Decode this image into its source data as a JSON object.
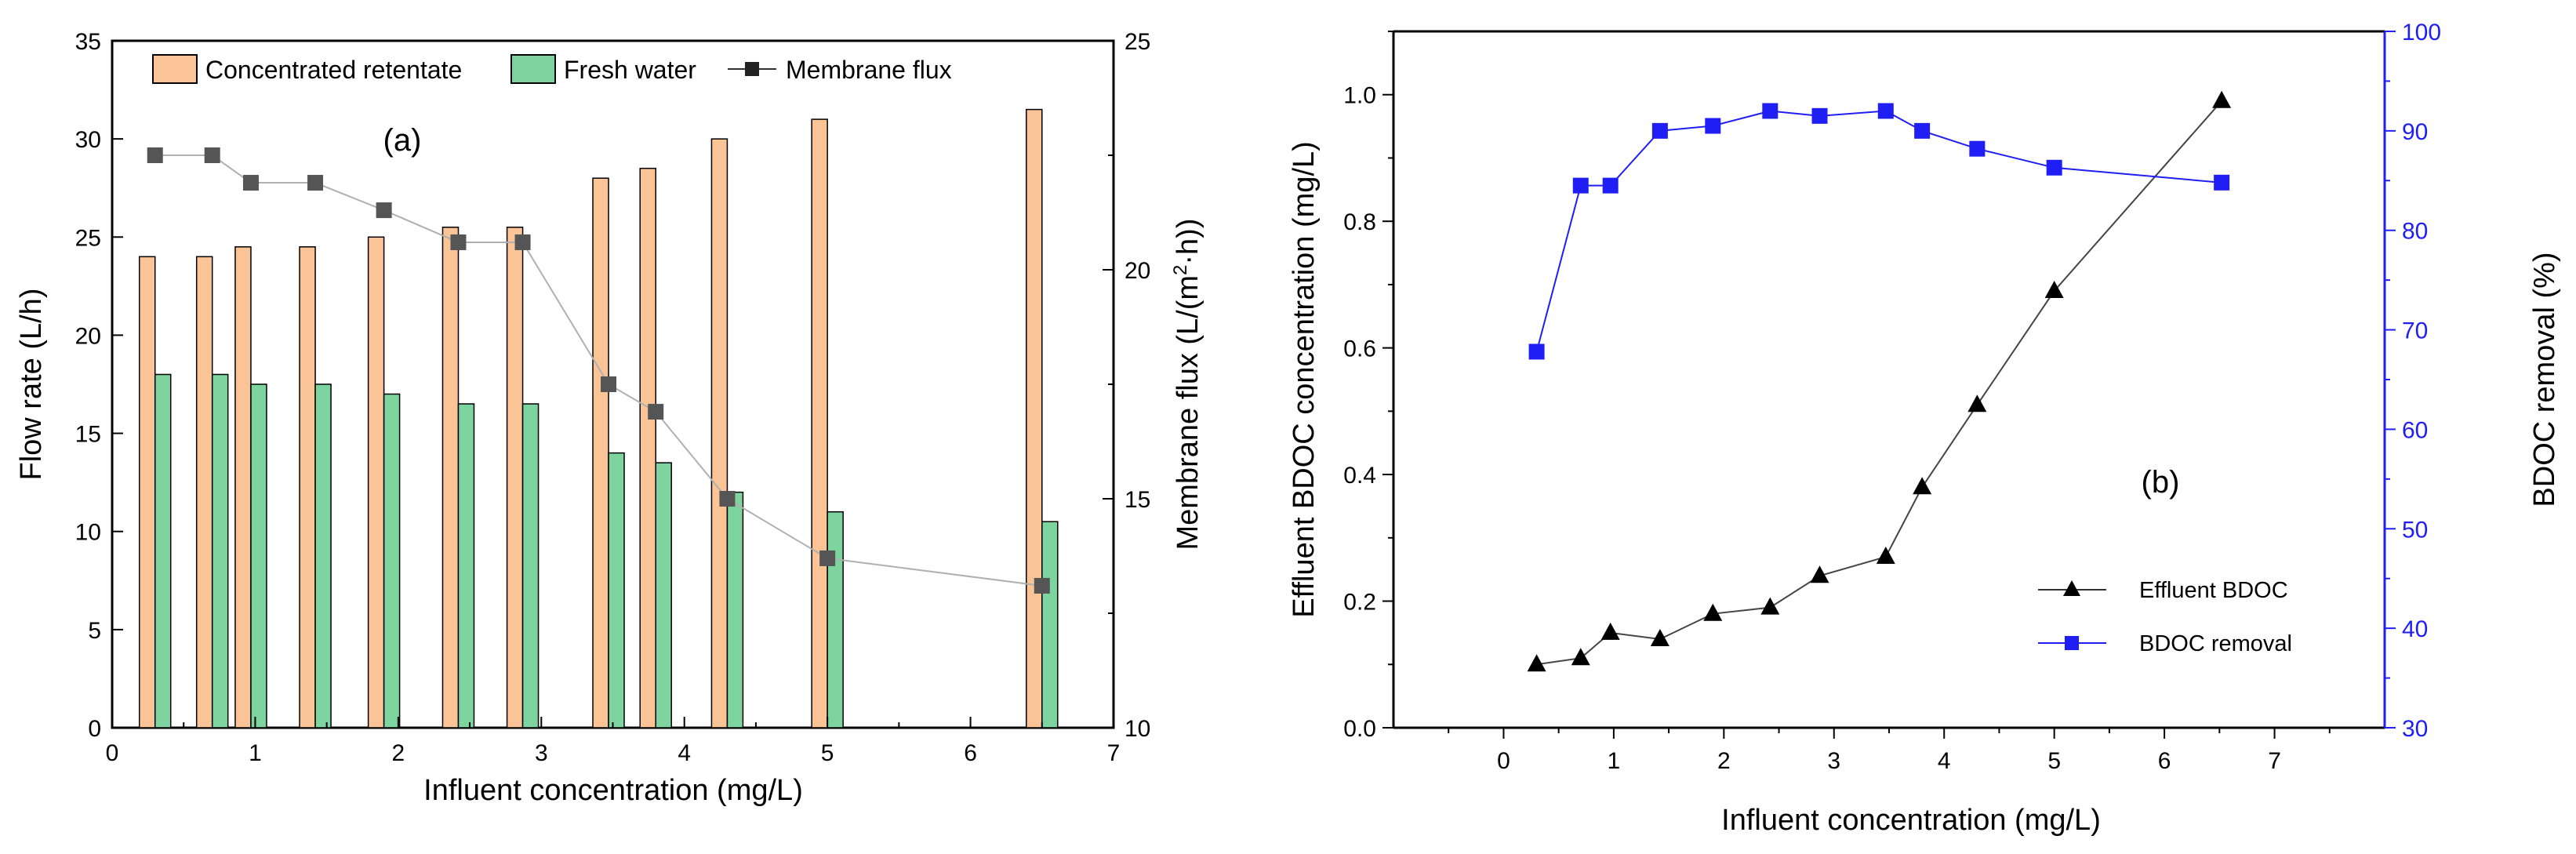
{
  "chart_data": [
    {
      "type": "bar",
      "panel_label": "(a)",
      "xlabel": "Influent concentration (mg/L)",
      "ylabel": "Flow rate (L/h)",
      "y2label_main": "Membrane flux (L/(m",
      "y2label_sup": "2",
      "y2label_tail": "·h))",
      "xlim": [
        0,
        7
      ],
      "ylim": [
        0,
        35
      ],
      "y2lim": [
        10,
        25
      ],
      "xticks": [
        "0",
        "1",
        "2",
        "3",
        "4",
        "5",
        "6",
        "7"
      ],
      "yticks": [
        "0",
        "5",
        "10",
        "15",
        "20",
        "25",
        "30",
        "35"
      ],
      "y2ticks": [
        "10",
        "15",
        "20",
        "25"
      ],
      "x": [
        0.3,
        0.7,
        0.97,
        1.42,
        1.9,
        2.42,
        2.87,
        3.47,
        3.8,
        4.3,
        5.0,
        6.5
      ],
      "series": [
        {
          "name": "Concentrated retentate",
          "values": [
            24.0,
            24.0,
            24.5,
            24.5,
            25.0,
            25.5,
            25.5,
            28.0,
            28.5,
            30.0,
            31.0,
            31.5
          ],
          "color": "#fbc497"
        },
        {
          "name": "Fresh water",
          "values": [
            18.0,
            18.0,
            17.5,
            17.5,
            17.0,
            16.5,
            16.5,
            14.0,
            13.5,
            12.0,
            11.0,
            10.5
          ],
          "color": "#7dd49e"
        },
        {
          "name": "Membrane flux",
          "values": [
            22.5,
            22.5,
            21.9,
            21.9,
            21.3,
            20.6,
            20.6,
            17.5,
            16.9,
            15.0,
            13.7,
            13.1
          ],
          "color": "#555555",
          "axis": "right"
        }
      ]
    },
    {
      "type": "line",
      "panel_label": "(b)",
      "xlabel": "Influent concentration (mg/L)",
      "ylabel": "Effluent BDOC concentration (mg/L)",
      "y2label": "BDOC removal (%)",
      "xlim": [
        -1,
        8
      ],
      "ylim": [
        0,
        1.1
      ],
      "y2lim": [
        30,
        100
      ],
      "xticks": [
        "0",
        "1",
        "2",
        "3",
        "4",
        "5",
        "6",
        "7"
      ],
      "yticks": [
        "0.0",
        "0.2",
        "0.4",
        "0.6",
        "0.8",
        "1.0"
      ],
      "y2ticks": [
        "30",
        "40",
        "50",
        "60",
        "70",
        "80",
        "90",
        "100"
      ],
      "series": [
        {
          "name": "Effluent BDOC",
          "x": [
            0.3,
            0.7,
            0.97,
            1.42,
            1.9,
            2.42,
            2.87,
            3.47,
            3.8,
            4.3,
            5.0,
            6.52
          ],
          "values": [
            0.1,
            0.11,
            0.15,
            0.14,
            0.18,
            0.19,
            0.24,
            0.27,
            0.38,
            0.51,
            0.69,
            0.99
          ],
          "color": "#000000",
          "axis": "left"
        },
        {
          "name": "BDOC removal",
          "x": [
            0.3,
            0.7,
            0.97,
            1.42,
            1.9,
            2.42,
            2.87,
            3.47,
            3.8,
            4.3,
            5.0,
            6.52
          ],
          "values": [
            67.8,
            84.5,
            84.5,
            90.0,
            90.5,
            92.0,
            91.5,
            92.0,
            90.0,
            88.2,
            86.3,
            84.8
          ],
          "color": "#1f1ff5",
          "axis": "right"
        }
      ]
    }
  ]
}
